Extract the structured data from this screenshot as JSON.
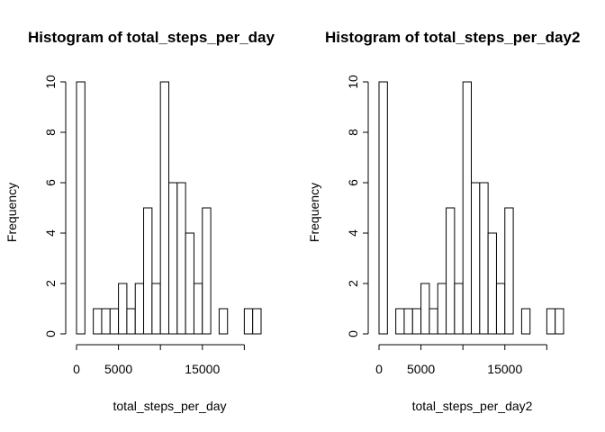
{
  "chart_data": [
    {
      "type": "bar",
      "title": "Histogram of total_steps_per_day",
      "xlabel": "total_steps_per_day",
      "ylabel": "Frequency",
      "bin_width": 1000,
      "bin_start": 0,
      "values": [
        10,
        0,
        1,
        1,
        1,
        2,
        1,
        2,
        5,
        2,
        10,
        6,
        6,
        4,
        2,
        5,
        0,
        1,
        0,
        0,
        1,
        1
      ],
      "xlim": [
        0,
        22000
      ],
      "ylim": [
        0,
        10
      ],
      "x_ticks": [
        0,
        5000,
        10000,
        15000,
        20000
      ],
      "x_tick_labels": [
        "0",
        "5000",
        "",
        "15000",
        ""
      ],
      "y_ticks": [
        0,
        2,
        4,
        6,
        8,
        10
      ],
      "y_tick_labels": [
        "0",
        "2",
        "4",
        "6",
        "8",
        "10"
      ],
      "grid": false,
      "bar_fill": "#ffffff",
      "bar_stroke": "#000000"
    },
    {
      "type": "bar",
      "title": "Histogram of total_steps_per_day2",
      "xlabel": "total_steps_per_day2",
      "ylabel": "Frequency",
      "bin_width": 1000,
      "bin_start": 0,
      "values": [
        10,
        0,
        1,
        1,
        1,
        2,
        1,
        2,
        5,
        2,
        10,
        6,
        6,
        4,
        2,
        5,
        0,
        1,
        0,
        0,
        1,
        1
      ],
      "xlim": [
        0,
        22000
      ],
      "ylim": [
        0,
        10
      ],
      "x_ticks": [
        0,
        5000,
        10000,
        15000,
        20000
      ],
      "x_tick_labels": [
        "0",
        "5000",
        "",
        "15000",
        ""
      ],
      "y_ticks": [
        0,
        2,
        4,
        6,
        8,
        10
      ],
      "y_tick_labels": [
        "0",
        "2",
        "4",
        "6",
        "8",
        "10"
      ],
      "grid": false,
      "bar_fill": "#ffffff",
      "bar_stroke": "#000000"
    }
  ]
}
